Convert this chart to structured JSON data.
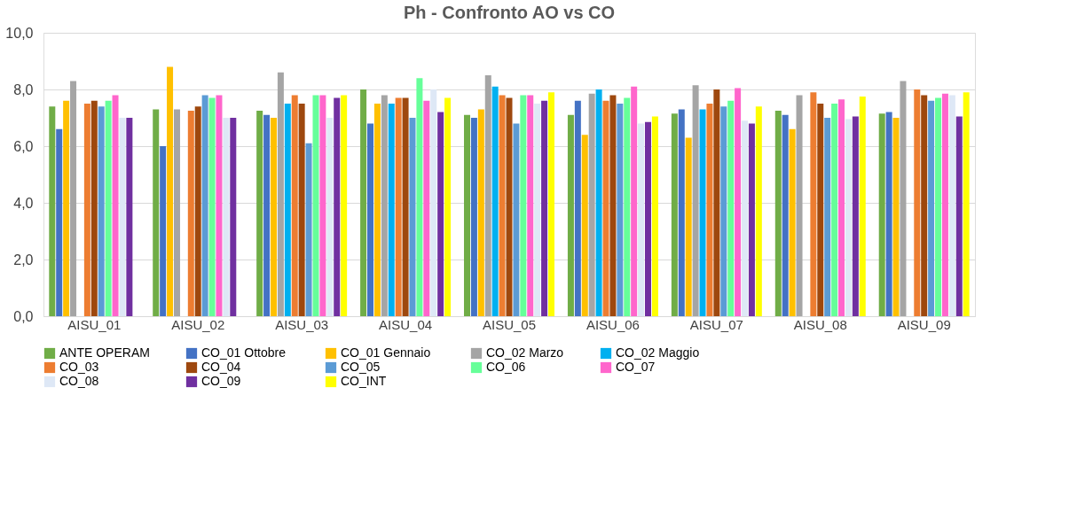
{
  "chart_data": {
    "type": "bar",
    "title": "Ph    -    Confronto AO vs CO",
    "categories": [
      "AISU_01",
      "AISU_02",
      "AISU_03",
      "AISU_04",
      "AISU_05",
      "AISU_06",
      "AISU_07",
      "AISU_08",
      "AISU_09"
    ],
    "series": [
      {
        "name": "ANTE OPERAM",
        "color": "#70ad47",
        "values": [
          7.4,
          7.3,
          7.25,
          8.0,
          7.1,
          7.1,
          7.15,
          7.25,
          7.15
        ]
      },
      {
        "name": "CO_01  Ottobre",
        "color": "#4472c4",
        "values": [
          6.6,
          6.0,
          7.1,
          6.8,
          7.0,
          7.6,
          7.3,
          7.1,
          7.2
        ]
      },
      {
        "name": "CO_01  Gennaio",
        "color": "#ffc000",
        "values": [
          7.6,
          8.8,
          7.0,
          7.5,
          7.3,
          6.4,
          6.3,
          6.6,
          7.0
        ]
      },
      {
        "name": "CO_02 Marzo",
        "color": "#a5a5a5",
        "values": [
          8.3,
          7.3,
          8.6,
          7.8,
          8.5,
          7.85,
          8.15,
          7.8,
          8.3
        ]
      },
      {
        "name": "CO_02 Maggio",
        "color": "#00b0f0",
        "values": [
          null,
          null,
          7.5,
          7.5,
          8.1,
          8.0,
          7.3,
          null,
          null
        ]
      },
      {
        "name": "CO_03",
        "color": "#ed7d31",
        "values": [
          7.5,
          7.25,
          7.8,
          7.7,
          7.8,
          7.6,
          7.5,
          7.9,
          8.0
        ]
      },
      {
        "name": "CO_04",
        "color": "#9e480e",
        "values": [
          7.6,
          7.4,
          7.5,
          7.7,
          7.7,
          7.8,
          8.0,
          7.5,
          7.8
        ]
      },
      {
        "name": "CO_05",
        "color": "#5b9bd5",
        "values": [
          7.4,
          7.8,
          6.1,
          7.0,
          6.8,
          7.5,
          7.4,
          7.0,
          7.6
        ]
      },
      {
        "name": "CO_06",
        "color": "#66ff99",
        "values": [
          7.6,
          7.7,
          7.8,
          8.4,
          7.8,
          7.7,
          7.6,
          7.5,
          7.7
        ]
      },
      {
        "name": "CO_07",
        "color": "#ff66cc",
        "values": [
          7.8,
          7.8,
          7.8,
          7.6,
          7.8,
          8.1,
          8.05,
          7.65,
          7.85
        ]
      },
      {
        "name": "CO_08",
        "color": "#dee8f6",
        "values": [
          7.0,
          7.0,
          7.0,
          8.0,
          7.5,
          6.8,
          6.9,
          6.95,
          7.8
        ]
      },
      {
        "name": "CO_09",
        "color": "#7030a0",
        "values": [
          7.0,
          7.0,
          7.7,
          7.2,
          7.6,
          6.85,
          6.8,
          7.05,
          7.05
        ]
      },
      {
        "name": "CO_INT",
        "color": "#ffff00",
        "values": [
          null,
          null,
          7.8,
          7.7,
          7.9,
          7.05,
          7.4,
          7.75,
          7.9
        ]
      }
    ],
    "ylim": [
      0,
      10
    ],
    "yticks": [
      {
        "value": 0,
        "label": "0,0"
      },
      {
        "value": 2,
        "label": "2,0"
      },
      {
        "value": 4,
        "label": "4,0"
      },
      {
        "value": 6,
        "label": "6,0"
      },
      {
        "value": 8,
        "label": "8,0"
      },
      {
        "value": 10,
        "label": "10,0"
      }
    ],
    "grid": "y",
    "legend": "bottom"
  }
}
